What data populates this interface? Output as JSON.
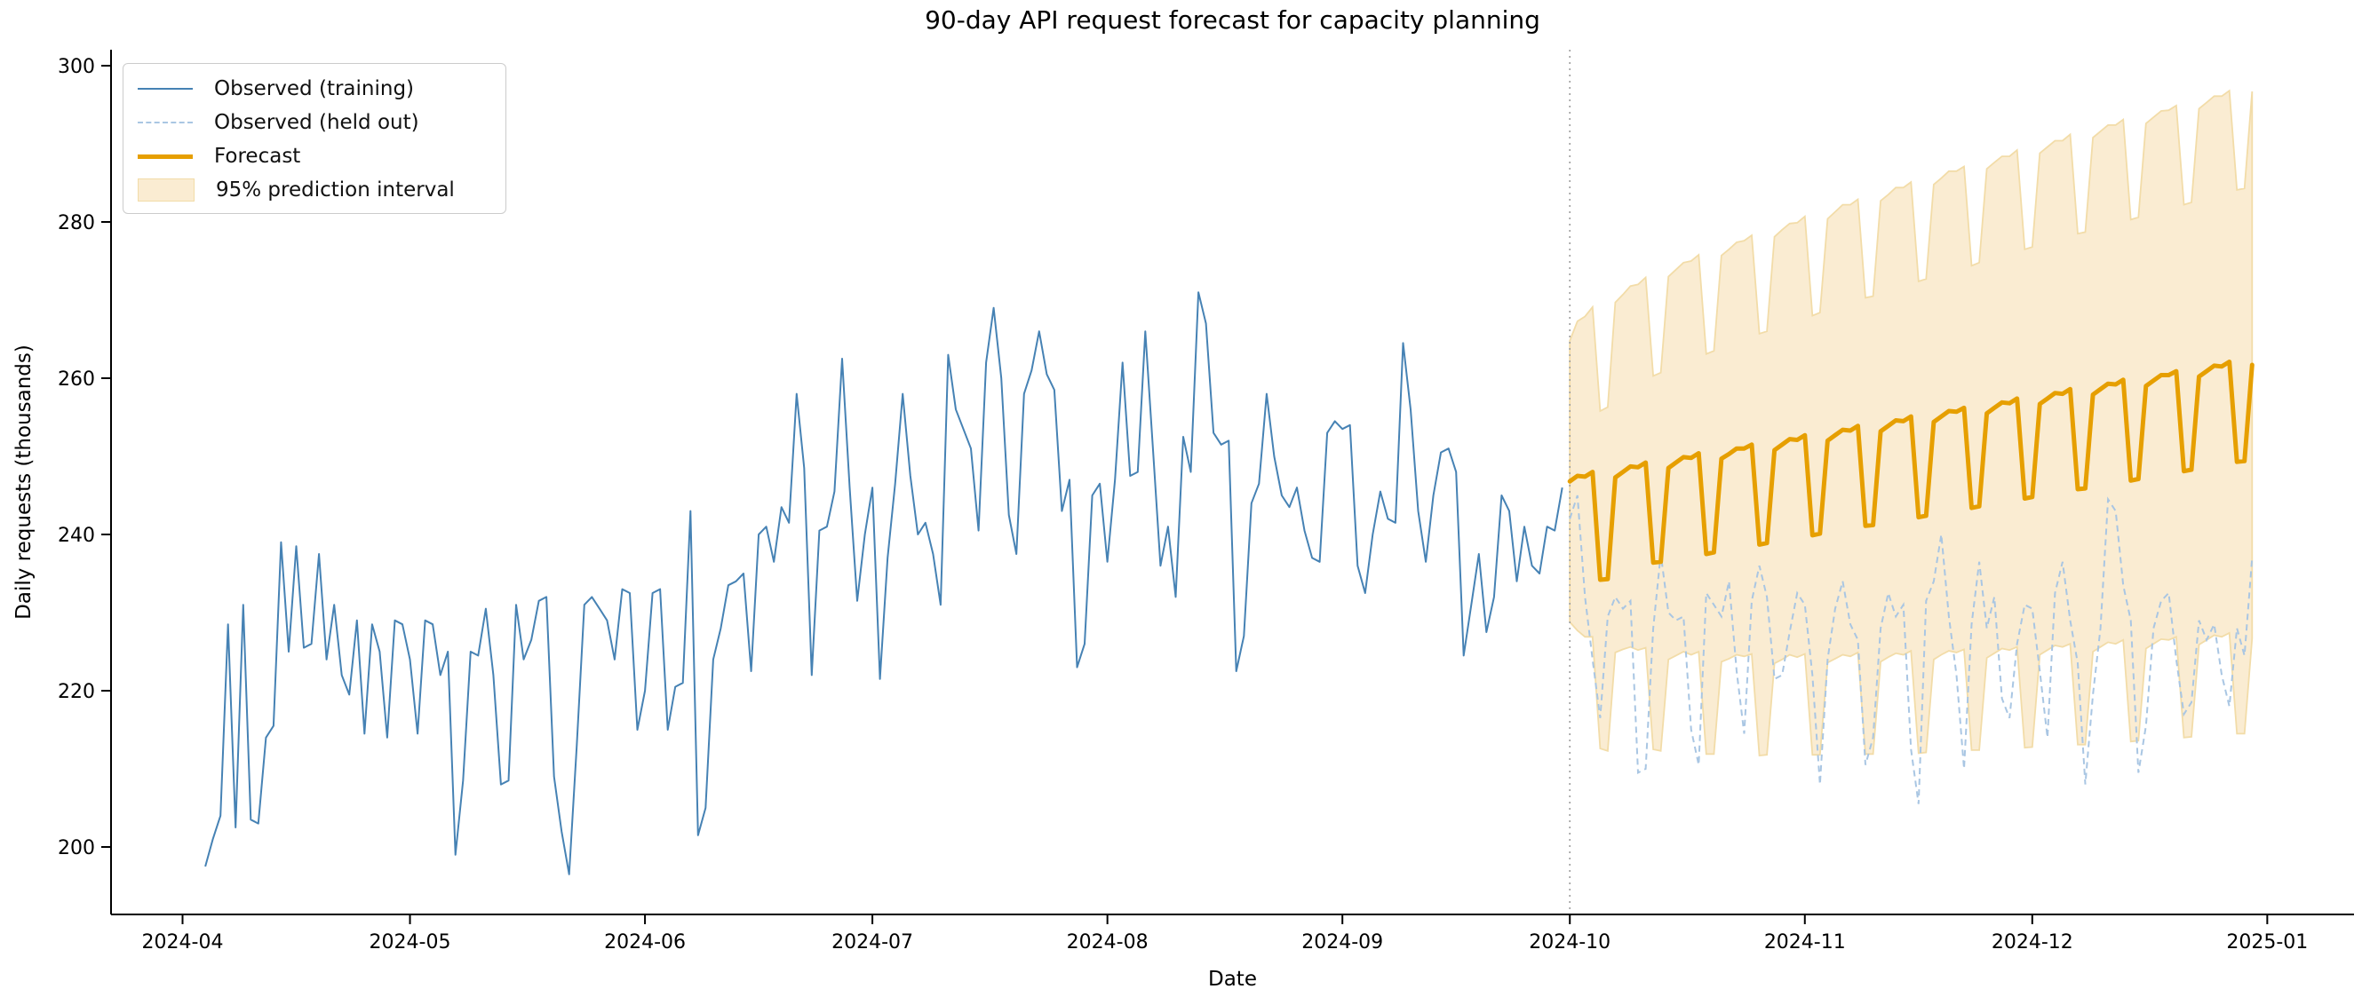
{
  "chart_data": {
    "type": "line",
    "title": "90-day API request forecast for capacity planning",
    "xlabel": "Date",
    "ylabel": "Daily requests (thousands)",
    "x_ticks": [
      "2024-04",
      "2024-05",
      "2024-06",
      "2024-07",
      "2024-08",
      "2024-09",
      "2024-10",
      "2024-11",
      "2024-12",
      "2025-01"
    ],
    "y_ticks": [
      200,
      220,
      240,
      260,
      280,
      300
    ],
    "ylim": [
      191,
      302
    ],
    "grid": false,
    "legend_position": "upper left",
    "forecast_start": "2024-10-01",
    "legend": [
      {
        "label": "Observed (training)",
        "style": "solid",
        "color": "#4682B4"
      },
      {
        "label": "Observed (held out)",
        "style": "dashed",
        "color": "#A9C6E3"
      },
      {
        "label": "Forecast",
        "style": "thick",
        "color": "#E69F00"
      },
      {
        "label": "95% prediction interval",
        "style": "patch",
        "color": "#FAECD2",
        "edge": "#F2DCA8"
      }
    ],
    "colors": {
      "training": "#4682B4",
      "held_out": "#A9C6E3",
      "forecast": "#E69F00",
      "band_fill": "#FAECD2",
      "band_edge": "#F2DCA8",
      "vline": "#9E9E9E",
      "spine": "#000000",
      "text": "#000000"
    },
    "series": {
      "observed_training": {
        "name": "Observed (training)",
        "start_date": "2024-04-04",
        "values": [
          197.5,
          201,
          204,
          228.5,
          202.5,
          231,
          203.5,
          203,
          214,
          215.5,
          239,
          225,
          238.5,
          225.5,
          226,
          237.5,
          224,
          231,
          222,
          219.5,
          229,
          214.5,
          228.5,
          225,
          214,
          229,
          228.5,
          224,
          214.5,
          229,
          228.5,
          222,
          225,
          199,
          208.5,
          225,
          224.5,
          230.5,
          222,
          208,
          208.5,
          231,
          224,
          226.5,
          231.5,
          232,
          209,
          202,
          196.5,
          213,
          231,
          232,
          230.5,
          229,
          224,
          233,
          232.5,
          215,
          220,
          232.5,
          233,
          215,
          220.5,
          221,
          243,
          201.5,
          205,
          224,
          228,
          233.5,
          234,
          235,
          222.5,
          240,
          241,
          236.5,
          243.5,
          241.5,
          258,
          248.5,
          222,
          240.5,
          241,
          245.5,
          262.5,
          246,
          231.5,
          240,
          246,
          221.5,
          237,
          246.5,
          258,
          247.5,
          240,
          241.5,
          237.5,
          231,
          263,
          256,
          253.5,
          251,
          240.5,
          262,
          269,
          260,
          242.5,
          237.5,
          258,
          261,
          266,
          260.5,
          258.5,
          243,
          247,
          223,
          226,
          245,
          246.5,
          236.5,
          247,
          262,
          247.5,
          248,
          266,
          251,
          236,
          241,
          232,
          252.5,
          248,
          271,
          267,
          253,
          251.5,
          252,
          222.5,
          227,
          244,
          246.5,
          258,
          250,
          245,
          243.5,
          246,
          240.5,
          237,
          236.5,
          253,
          254.5,
          253.5,
          254,
          236,
          232.5,
          240,
          245.5,
          242,
          241.5,
          264.5,
          256,
          243,
          236.5,
          245,
          250.5,
          251,
          248,
          224.5,
          231,
          237.5,
          227.5,
          232,
          245,
          243,
          234,
          241,
          236,
          235,
          241,
          240.5,
          246
        ]
      },
      "observed_held_out": {
        "name": "Observed (held out)",
        "start_date": "2024-10-01",
        "values": [
          242,
          245,
          232,
          224,
          216.5,
          229.5,
          232,
          230.5,
          231.5,
          209.5,
          210,
          228,
          237.5,
          230,
          229,
          229.5,
          215,
          210.5,
          232.5,
          231,
          229.5,
          234,
          222.5,
          214.5,
          231.5,
          236,
          232,
          221.5,
          222,
          227.5,
          232.5,
          231,
          222,
          208,
          224,
          230.5,
          234,
          228.5,
          226.5,
          210.5,
          214,
          228,
          232.5,
          229.5,
          231,
          212.5,
          205.5,
          231.5,
          234,
          240,
          229.5,
          222,
          210,
          228.5,
          236.5,
          228,
          232,
          219,
          216.5,
          226,
          231,
          230.5,
          222.5,
          214,
          232.5,
          236.5,
          229,
          223.5,
          208,
          219.5,
          228,
          244.5,
          243,
          233.5,
          229,
          209.5,
          215.5,
          228,
          231.5,
          232.5,
          224,
          217,
          218.5,
          229,
          226.5,
          228.5,
          222,
          218,
          228,
          224.5,
          237
        ]
      },
      "forecast": {
        "name": "Forecast",
        "start_date": "2024-10-01",
        "values": [
          246.8,
          247.5,
          247.4,
          248,
          234.2,
          234.3,
          247.3,
          248,
          248.7,
          248.6,
          249.2,
          236.4,
          236.5,
          248.5,
          249.2,
          249.9,
          249.8,
          250.4,
          237.5,
          237.7,
          249.7,
          250.3,
          251,
          251,
          251.5,
          238.7,
          238.9,
          250.8,
          251.5,
          252.2,
          252.1,
          252.7,
          239.9,
          240.1,
          252,
          252.7,
          253.4,
          253.3,
          253.9,
          241.1,
          241.2,
          253.2,
          253.9,
          254.6,
          254.5,
          255.1,
          242.2,
          242.4,
          254.4,
          255.1,
          255.8,
          255.7,
          256.2,
          243.4,
          243.6,
          255.5,
          256.2,
          256.9,
          256.8,
          257.4,
          244.6,
          244.8,
          256.7,
          257.4,
          258.1,
          258,
          258.6,
          245.8,
          245.9,
          257.9,
          258.6,
          259.3,
          259.2,
          259.8,
          246.9,
          247.1,
          259,
          259.7,
          260.4,
          260.4,
          260.9,
          248.1,
          248.3,
          260.2,
          260.9,
          261.6,
          261.5,
          262.1,
          249.3,
          249.4,
          261.7
        ]
      },
      "pi_upper": {
        "name": "95% prediction interval upper bound",
        "start_date": "2024-10-01",
        "values": [
          264.8,
          267.3,
          267.9,
          269.1,
          255.8,
          256.3,
          269.7,
          270.7,
          271.8,
          272,
          272.9,
          260.3,
          260.7,
          273,
          273.9,
          274.8,
          275,
          275.8,
          263.1,
          263.5,
          275.7,
          276.5,
          277.4,
          277.6,
          278.3,
          265.7,
          266,
          278.1,
          279,
          279.8,
          279.9,
          280.7,
          268,
          268.4,
          280.4,
          281.3,
          282.2,
          282.2,
          282.9,
          270.3,
          270.5,
          282.7,
          283.5,
          284.4,
          284.4,
          285.1,
          272.4,
          272.7,
          284.8,
          285.6,
          286.5,
          286.5,
          287.1,
          274.4,
          274.8,
          286.8,
          287.6,
          288.4,
          288.4,
          289.2,
          276.5,
          276.8,
          288.8,
          289.6,
          290.4,
          290.4,
          291.2,
          278.5,
          278.7,
          290.8,
          291.6,
          292.4,
          292.4,
          293.1,
          280.3,
          280.6,
          292.6,
          293.4,
          294.2,
          294.3,
          294.9,
          282.2,
          282.5,
          294.5,
          295.3,
          296.1,
          296.1,
          296.8,
          284.1,
          284.3,
          296.7
        ]
      },
      "pi_lower": {
        "name": "95% prediction interval lower bound",
        "start_date": "2024-10-01",
        "values": [
          228.8,
          227.7,
          226.9,
          226.9,
          212.6,
          212.3,
          224.9,
          225.3,
          225.6,
          225.2,
          225.5,
          212.5,
          212.3,
          224,
          224.5,
          225,
          224.6,
          225,
          211.9,
          211.9,
          223.7,
          224.1,
          224.6,
          224.4,
          224.7,
          211.7,
          211.8,
          223.5,
          224,
          224.6,
          224.3,
          224.7,
          211.8,
          211.8,
          223.6,
          224.1,
          224.6,
          224.4,
          224.9,
          211.9,
          211.9,
          223.7,
          224.3,
          224.8,
          224.6,
          225.1,
          212,
          212.1,
          224,
          224.6,
          225.1,
          224.9,
          225.3,
          212.4,
          212.4,
          224.2,
          224.8,
          225.4,
          225.2,
          225.6,
          212.7,
          212.8,
          224.6,
          225.2,
          225.8,
          225.6,
          226,
          213.1,
          213.1,
          225,
          225.6,
          226.2,
          226,
          226.5,
          213.5,
          213.6,
          225.4,
          226,
          226.6,
          226.5,
          226.9,
          214,
          214.1,
          225.9,
          226.5,
          227.1,
          226.9,
          227.4,
          214.5,
          214.5,
          226.7
        ]
      }
    }
  }
}
